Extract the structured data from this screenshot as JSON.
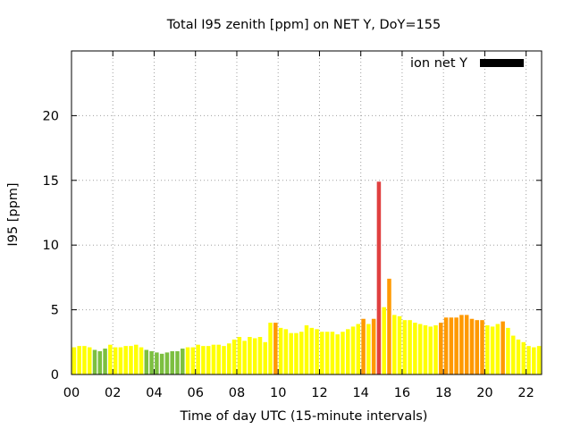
{
  "chart_data": {
    "type": "bar",
    "title": "Total I95 zenith [ppm] on NET Y, DoY=155",
    "xlabel": "Time of day UTC (15-minute intervals)",
    "ylabel": "I95 [ppm]",
    "legend": {
      "label": "ion net Y",
      "color": "#000000",
      "position": "top-right"
    },
    "xlim": [
      0,
      22.75
    ],
    "ylim": [
      0,
      25
    ],
    "bar_step_hours": 0.25,
    "x_ticks": [
      {
        "v": 0,
        "label": "00"
      },
      {
        "v": 2,
        "label": "02"
      },
      {
        "v": 4,
        "label": "04"
      },
      {
        "v": 6,
        "label": "06"
      },
      {
        "v": 8,
        "label": "08"
      },
      {
        "v": 10,
        "label": "10"
      },
      {
        "v": 12,
        "label": "12"
      },
      {
        "v": 14,
        "label": "14"
      },
      {
        "v": 16,
        "label": "16"
      },
      {
        "v": 18,
        "label": "18"
      },
      {
        "v": 20,
        "label": "20"
      },
      {
        "v": 22,
        "label": "22"
      }
    ],
    "y_ticks": [
      {
        "v": 0,
        "label": "0"
      },
      {
        "v": 5,
        "label": "5"
      },
      {
        "v": 10,
        "label": "10"
      },
      {
        "v": 15,
        "label": "15"
      },
      {
        "v": 20,
        "label": "20"
      }
    ],
    "grid": true,
    "level_colors": {
      "low": "#7cbf40",
      "normal": "#ffff00",
      "elevated": "#ff9900",
      "high": "#e04040"
    },
    "bars": [
      {
        "x": 0.0,
        "y": 2.1,
        "level": "normal"
      },
      {
        "x": 0.25,
        "y": 2.2,
        "level": "normal"
      },
      {
        "x": 0.5,
        "y": 2.2,
        "level": "normal"
      },
      {
        "x": 0.75,
        "y": 2.1,
        "level": "normal"
      },
      {
        "x": 1.0,
        "y": 1.9,
        "level": "low"
      },
      {
        "x": 1.25,
        "y": 1.8,
        "level": "low"
      },
      {
        "x": 1.5,
        "y": 2.0,
        "level": "low"
      },
      {
        "x": 1.75,
        "y": 2.3,
        "level": "normal"
      },
      {
        "x": 2.0,
        "y": 2.1,
        "level": "normal"
      },
      {
        "x": 2.25,
        "y": 2.1,
        "level": "normal"
      },
      {
        "x": 2.5,
        "y": 2.2,
        "level": "normal"
      },
      {
        "x": 2.75,
        "y": 2.2,
        "level": "normal"
      },
      {
        "x": 3.0,
        "y": 2.3,
        "level": "normal"
      },
      {
        "x": 3.25,
        "y": 2.1,
        "level": "normal"
      },
      {
        "x": 3.5,
        "y": 1.9,
        "level": "low"
      },
      {
        "x": 3.75,
        "y": 1.8,
        "level": "low"
      },
      {
        "x": 4.0,
        "y": 1.7,
        "level": "low"
      },
      {
        "x": 4.25,
        "y": 1.6,
        "level": "low"
      },
      {
        "x": 4.5,
        "y": 1.7,
        "level": "low"
      },
      {
        "x": 4.75,
        "y": 1.8,
        "level": "low"
      },
      {
        "x": 5.0,
        "y": 1.8,
        "level": "low"
      },
      {
        "x": 5.25,
        "y": 2.0,
        "level": "low"
      },
      {
        "x": 5.5,
        "y": 2.1,
        "level": "normal"
      },
      {
        "x": 5.75,
        "y": 2.1,
        "level": "normal"
      },
      {
        "x": 6.0,
        "y": 2.3,
        "level": "normal"
      },
      {
        "x": 6.25,
        "y": 2.2,
        "level": "normal"
      },
      {
        "x": 6.5,
        "y": 2.2,
        "level": "normal"
      },
      {
        "x": 6.75,
        "y": 2.3,
        "level": "normal"
      },
      {
        "x": 7.0,
        "y": 2.3,
        "level": "normal"
      },
      {
        "x": 7.25,
        "y": 2.2,
        "level": "normal"
      },
      {
        "x": 7.5,
        "y": 2.4,
        "level": "normal"
      },
      {
        "x": 7.75,
        "y": 2.7,
        "level": "normal"
      },
      {
        "x": 8.0,
        "y": 2.9,
        "level": "normal"
      },
      {
        "x": 8.25,
        "y": 2.6,
        "level": "normal"
      },
      {
        "x": 8.5,
        "y": 2.9,
        "level": "normal"
      },
      {
        "x": 8.75,
        "y": 2.8,
        "level": "normal"
      },
      {
        "x": 9.0,
        "y": 2.9,
        "level": "normal"
      },
      {
        "x": 9.25,
        "y": 2.5,
        "level": "normal"
      },
      {
        "x": 9.5,
        "y": 4.0,
        "level": "normal"
      },
      {
        "x": 9.75,
        "y": 4.0,
        "level": "elevated"
      },
      {
        "x": 10.0,
        "y": 3.6,
        "level": "normal"
      },
      {
        "x": 10.25,
        "y": 3.5,
        "level": "normal"
      },
      {
        "x": 10.5,
        "y": 3.2,
        "level": "normal"
      },
      {
        "x": 10.75,
        "y": 3.2,
        "level": "normal"
      },
      {
        "x": 11.0,
        "y": 3.3,
        "level": "normal"
      },
      {
        "x": 11.25,
        "y": 3.8,
        "level": "normal"
      },
      {
        "x": 11.5,
        "y": 3.6,
        "level": "normal"
      },
      {
        "x": 11.75,
        "y": 3.5,
        "level": "normal"
      },
      {
        "x": 12.0,
        "y": 3.3,
        "level": "normal"
      },
      {
        "x": 12.25,
        "y": 3.3,
        "level": "normal"
      },
      {
        "x": 12.5,
        "y": 3.3,
        "level": "normal"
      },
      {
        "x": 12.75,
        "y": 3.1,
        "level": "normal"
      },
      {
        "x": 13.0,
        "y": 3.3,
        "level": "normal"
      },
      {
        "x": 13.25,
        "y": 3.5,
        "level": "normal"
      },
      {
        "x": 13.5,
        "y": 3.7,
        "level": "normal"
      },
      {
        "x": 13.75,
        "y": 3.9,
        "level": "normal"
      },
      {
        "x": 14.0,
        "y": 4.3,
        "level": "elevated"
      },
      {
        "x": 14.25,
        "y": 3.9,
        "level": "normal"
      },
      {
        "x": 14.5,
        "y": 4.3,
        "level": "elevated"
      },
      {
        "x": 14.75,
        "y": 14.9,
        "level": "high"
      },
      {
        "x": 15.0,
        "y": 5.2,
        "level": "normal"
      },
      {
        "x": 15.25,
        "y": 7.4,
        "level": "elevated"
      },
      {
        "x": 15.5,
        "y": 4.6,
        "level": "normal"
      },
      {
        "x": 15.75,
        "y": 4.5,
        "level": "normal"
      },
      {
        "x": 16.0,
        "y": 4.2,
        "level": "normal"
      },
      {
        "x": 16.25,
        "y": 4.2,
        "level": "normal"
      },
      {
        "x": 16.5,
        "y": 4.0,
        "level": "normal"
      },
      {
        "x": 16.75,
        "y": 3.9,
        "level": "normal"
      },
      {
        "x": 17.0,
        "y": 3.8,
        "level": "normal"
      },
      {
        "x": 17.25,
        "y": 3.7,
        "level": "normal"
      },
      {
        "x": 17.5,
        "y": 3.8,
        "level": "normal"
      },
      {
        "x": 17.75,
        "y": 4.0,
        "level": "elevated"
      },
      {
        "x": 18.0,
        "y": 4.4,
        "level": "elevated"
      },
      {
        "x": 18.25,
        "y": 4.4,
        "level": "elevated"
      },
      {
        "x": 18.5,
        "y": 4.4,
        "level": "elevated"
      },
      {
        "x": 18.75,
        "y": 4.6,
        "level": "elevated"
      },
      {
        "x": 19.0,
        "y": 4.6,
        "level": "elevated"
      },
      {
        "x": 19.25,
        "y": 4.3,
        "level": "elevated"
      },
      {
        "x": 19.5,
        "y": 4.2,
        "level": "elevated"
      },
      {
        "x": 19.75,
        "y": 4.2,
        "level": "elevated"
      },
      {
        "x": 20.0,
        "y": 3.8,
        "level": "normal"
      },
      {
        "x": 20.25,
        "y": 3.7,
        "level": "normal"
      },
      {
        "x": 20.5,
        "y": 3.9,
        "level": "normal"
      },
      {
        "x": 20.75,
        "y": 4.1,
        "level": "elevated"
      },
      {
        "x": 21.0,
        "y": 3.6,
        "level": "normal"
      },
      {
        "x": 21.25,
        "y": 3.0,
        "level": "normal"
      },
      {
        "x": 21.5,
        "y": 2.7,
        "level": "normal"
      },
      {
        "x": 21.75,
        "y": 2.5,
        "level": "normal"
      },
      {
        "x": 22.0,
        "y": 2.2,
        "level": "normal"
      },
      {
        "x": 22.25,
        "y": 2.1,
        "level": "normal"
      },
      {
        "x": 22.5,
        "y": 2.2,
        "level": "normal"
      }
    ]
  }
}
